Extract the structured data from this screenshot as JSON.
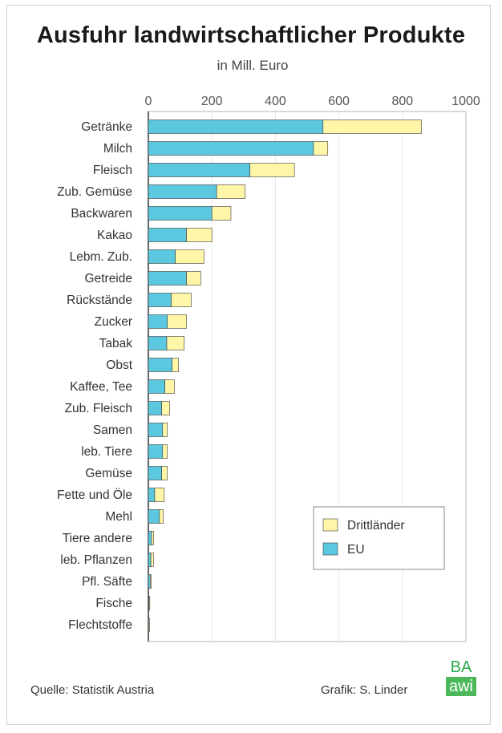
{
  "title": "Ausfuhr landwirtschaftlicher Produkte",
  "subtitle": "in Mill. Euro",
  "footer": {
    "source": "Quelle: Statistik Austria",
    "credit": "Grafik: S. Linder"
  },
  "logo": {
    "top": "BA",
    "bottom": "awi"
  },
  "colors": {
    "eu": "#5bc8e0",
    "third": "#fff6a8",
    "outline": "#3a3a3a"
  },
  "chart_data": {
    "type": "bar",
    "orientation": "horizontal",
    "stacked": true,
    "title": "Ausfuhr landwirtschaftlicher Produkte",
    "subtitle": "in Mill. Euro",
    "xlim": [
      0,
      1000
    ],
    "xticks": [
      "0",
      "200",
      "400",
      "600",
      "800",
      "1000"
    ],
    "legend_position": "bottom-right",
    "grid": true,
    "categories": [
      "Getränke",
      "Milch",
      "Fleisch",
      "Zub. Gemüse",
      "Backwaren",
      "Kakao",
      "Lebm. Zub.",
      "Getreide",
      "Rückstände",
      "Zucker",
      "Tabak",
      "Obst",
      "Kaffee, Tee",
      "Zub. Fleisch",
      "Samen",
      "leb. Tiere",
      "Gemüse",
      "Fette und Öle",
      "Mehl",
      "Tiere andere",
      "leb. Pflanzen",
      "Pfl. Säfte",
      "Fische",
      "Flechtstoffe"
    ],
    "series": [
      {
        "name": "EU",
        "values": [
          550,
          520,
          320,
          215,
          200,
          120,
          85,
          120,
          72,
          60,
          58,
          75,
          52,
          42,
          45,
          45,
          42,
          20,
          35,
          10,
          8,
          6,
          2,
          1
        ]
      },
      {
        "name": "Drittländer",
        "values": [
          310,
          45,
          140,
          90,
          60,
          80,
          90,
          45,
          63,
          60,
          55,
          20,
          30,
          25,
          15,
          15,
          18,
          30,
          12,
          7,
          8,
          3,
          1,
          1
        ]
      }
    ]
  }
}
